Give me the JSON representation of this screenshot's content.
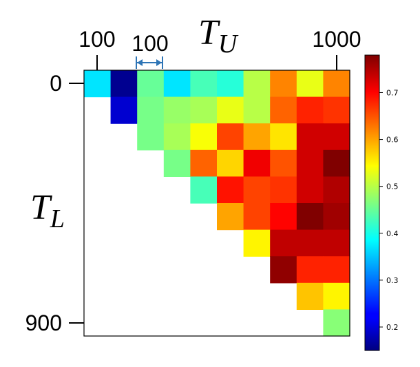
{
  "chart_data": {
    "type": "heatmap",
    "x_axis": {
      "name": "T",
      "name_sub": "U",
      "tick_labels": [
        {
          "label": "100",
          "value": 100
        },
        {
          "label": "1000",
          "value": 1000
        }
      ]
    },
    "y_axis": {
      "name": "T",
      "name_sub": "L",
      "tick_labels": [
        {
          "label": "0",
          "value": 0
        },
        {
          "label": "900",
          "value": 900
        }
      ]
    },
    "step_annotation": {
      "label": "100",
      "color": "#2e75b6"
    },
    "grid": false,
    "cols": [
      100,
      200,
      300,
      400,
      500,
      600,
      700,
      800,
      900,
      1000
    ],
    "rows": [
      0,
      100,
      200,
      300,
      400,
      500,
      600,
      700,
      800,
      900
    ],
    "colormap": "jet",
    "value_range": [
      0.15,
      0.78
    ],
    "colorbar": {
      "position": "right",
      "ticks": [
        "0.2",
        "0.3",
        "0.4",
        "0.5",
        "0.6",
        "0.7"
      ],
      "tick_values": [
        0.2,
        0.3,
        0.4,
        0.5,
        0.6,
        0.7
      ]
    },
    "values": [
      [
        0.37,
        0.16,
        0.45,
        0.37,
        0.43,
        0.41,
        0.5,
        0.62,
        0.53,
        0.62
      ],
      [
        null,
        0.2,
        0.46,
        0.48,
        0.49,
        0.53,
        0.5,
        0.64,
        0.68,
        0.67
      ],
      [
        null,
        null,
        0.46,
        0.49,
        0.54,
        0.66,
        0.6,
        0.56,
        0.73,
        0.73
      ],
      [
        null,
        null,
        null,
        0.46,
        0.64,
        0.57,
        0.71,
        0.65,
        0.73,
        0.78
      ],
      [
        null,
        null,
        null,
        null,
        0.43,
        0.69,
        0.66,
        0.67,
        0.73,
        0.75
      ],
      [
        null,
        null,
        null,
        null,
        null,
        0.6,
        0.66,
        0.7,
        0.78,
        0.76
      ],
      [
        null,
        null,
        null,
        null,
        null,
        null,
        0.55,
        0.74,
        0.74,
        0.74
      ],
      [
        null,
        null,
        null,
        null,
        null,
        null,
        null,
        0.77,
        0.68,
        0.68
      ],
      [
        null,
        null,
        null,
        null,
        null,
        null,
        null,
        null,
        0.58,
        0.55
      ],
      [
        null,
        null,
        null,
        null,
        null,
        null,
        null,
        null,
        null,
        0.47
      ]
    ]
  }
}
